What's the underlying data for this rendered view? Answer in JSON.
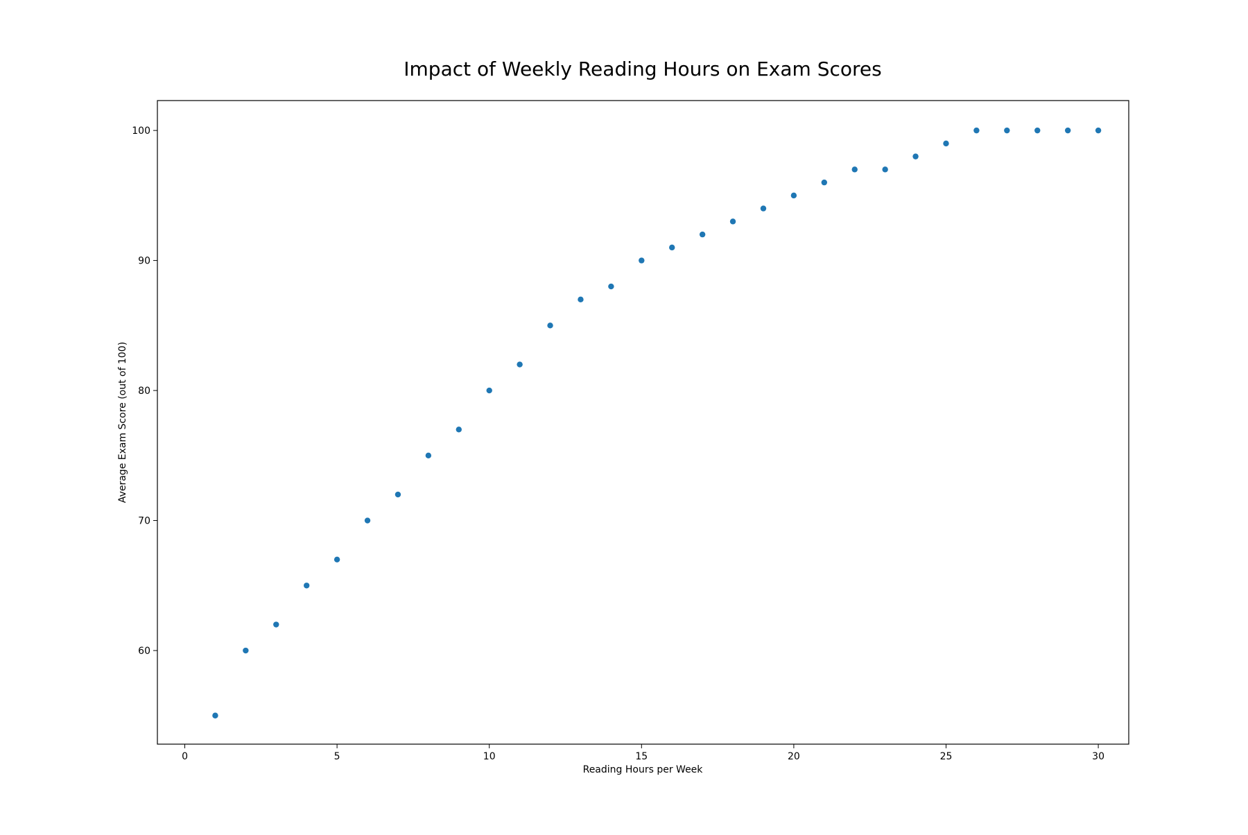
{
  "chart_data": {
    "type": "scatter",
    "title": "Impact of Weekly Reading Hours on Exam Scores",
    "xlabel": "Reading Hours per Week",
    "ylabel": "Average Exam Score (out of 100)",
    "xlim": [
      -0.9,
      31.0
    ],
    "ylim": [
      52.8,
      102.3
    ],
    "xticks": [
      0,
      5,
      10,
      15,
      20,
      25,
      30
    ],
    "yticks": [
      60,
      70,
      80,
      90,
      100
    ],
    "grid": false,
    "marker_color": "#1f77b4",
    "series": [
      {
        "x": [
          1,
          2,
          3,
          4,
          5,
          6,
          7,
          8,
          9,
          10,
          11,
          12,
          13,
          14,
          15,
          16,
          17,
          18,
          19,
          20,
          21,
          22,
          23,
          24,
          25,
          26,
          27,
          28,
          29,
          30
        ],
        "y": [
          55,
          60,
          62,
          65,
          67,
          70,
          72,
          75,
          77,
          80,
          82,
          85,
          87,
          88,
          90,
          91,
          92,
          93,
          94,
          95,
          96,
          97,
          97,
          98,
          99,
          100,
          100,
          100,
          100,
          100
        ]
      }
    ]
  }
}
